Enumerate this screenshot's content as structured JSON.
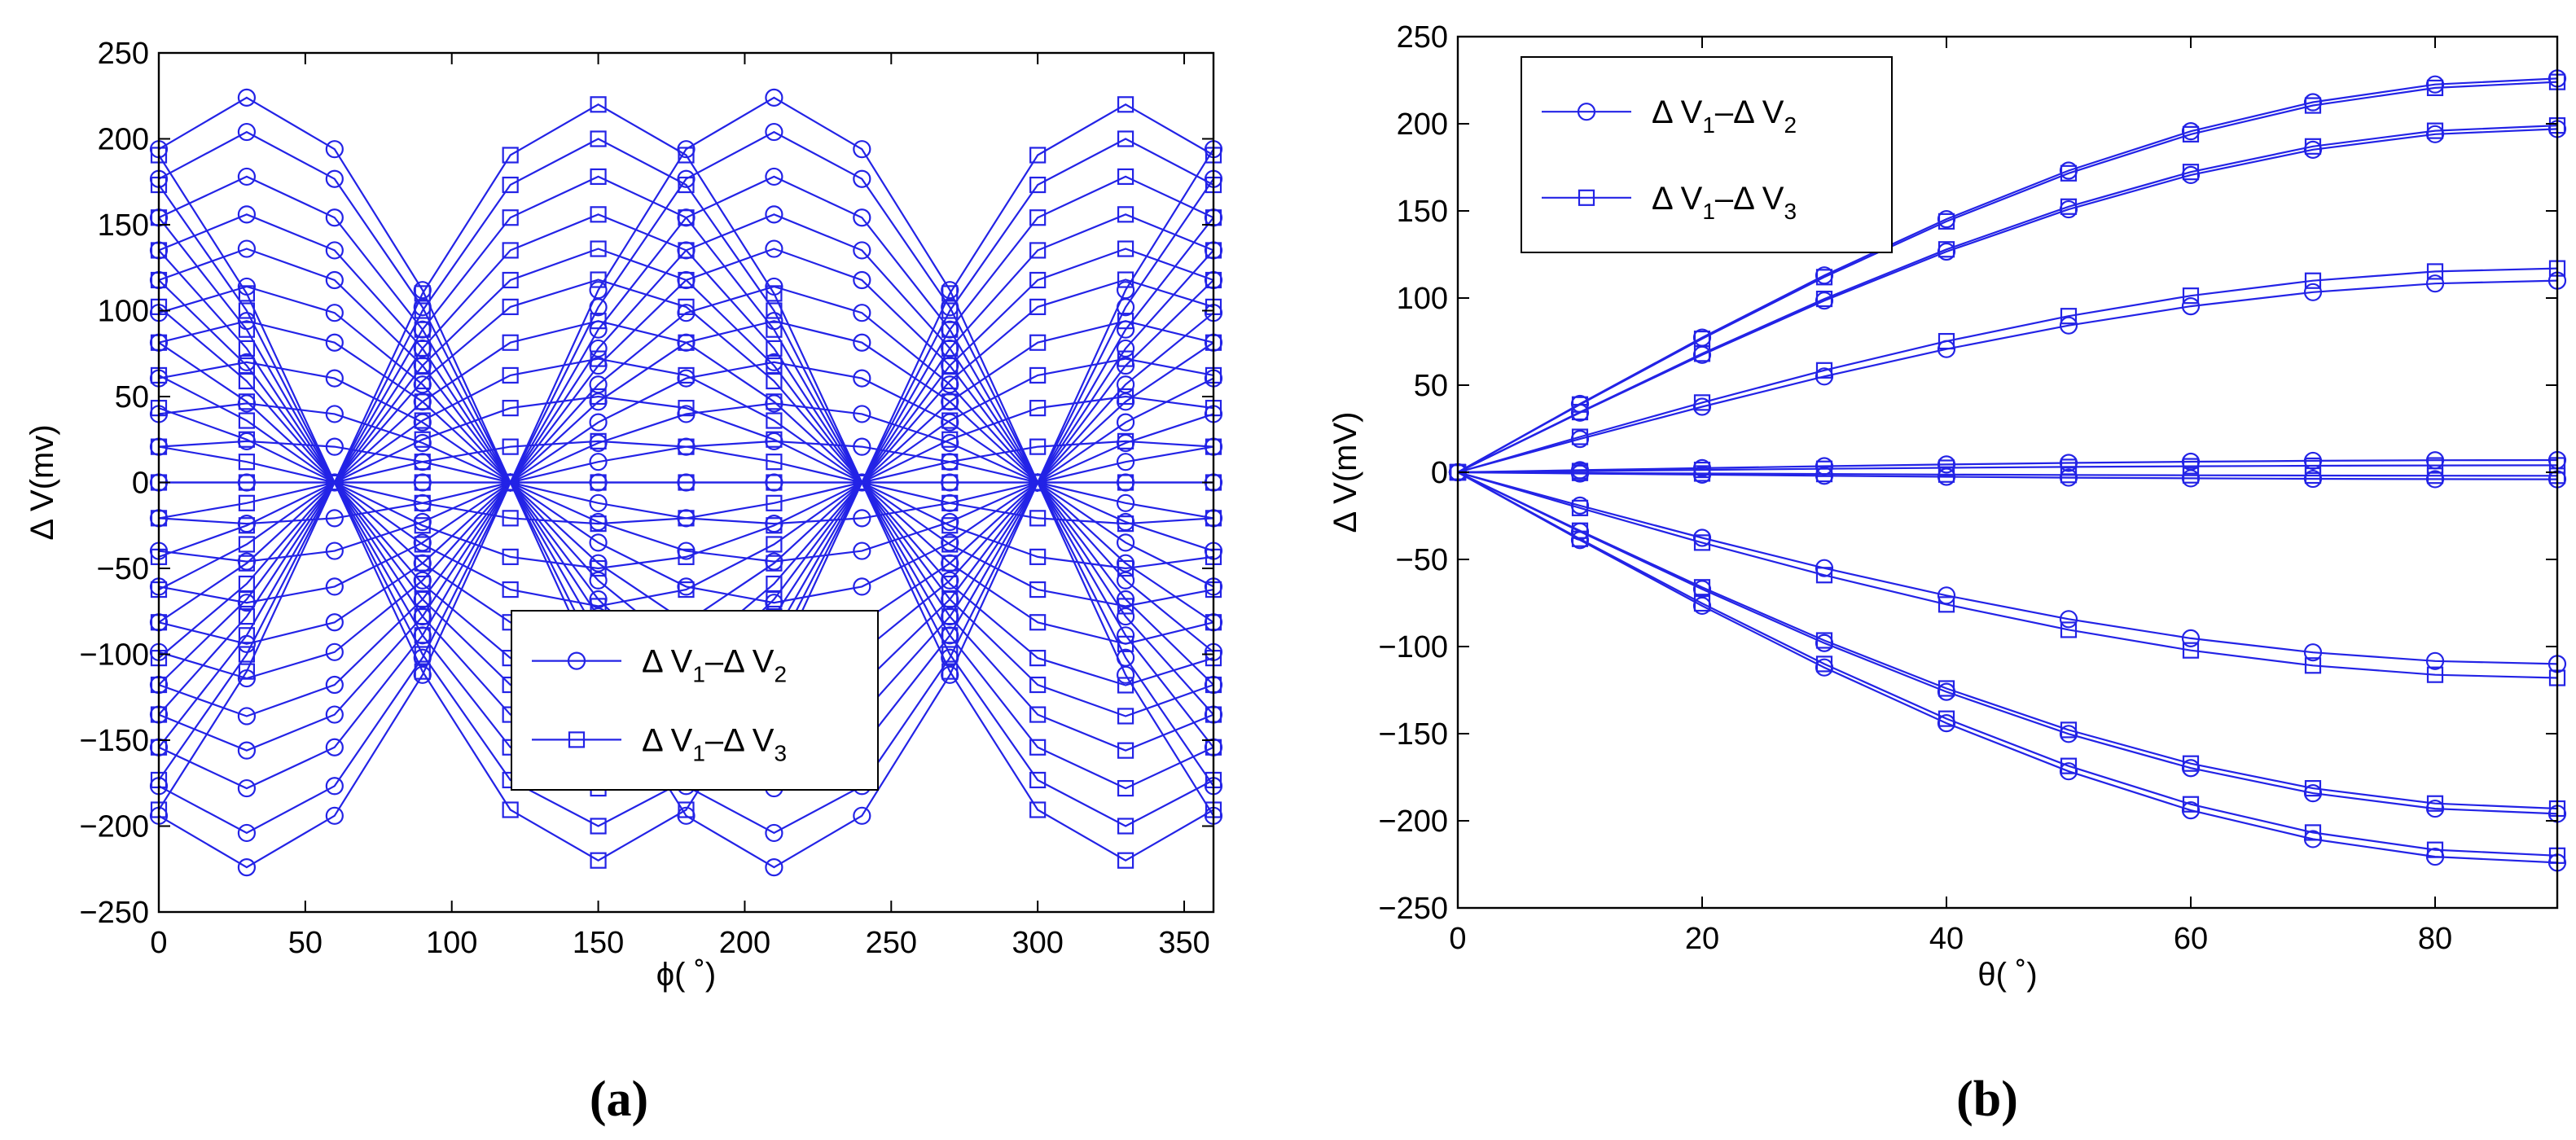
{
  "chart_data": [
    {
      "type": "line",
      "panel_label": "(a)",
      "xlabel": "ϕ( ˚)",
      "ylabel": "Δ V(mv)",
      "xlim": [
        0,
        360
      ],
      "ylim": [
        -250,
        250
      ],
      "xticks": [
        0,
        50,
        100,
        150,
        200,
        250,
        300,
        350
      ],
      "yticks": [
        -250,
        -200,
        -150,
        -100,
        -50,
        0,
        50,
        100,
        150,
        200,
        250
      ],
      "legend_position": "lower-right",
      "legend": [
        {
          "marker": "circle",
          "text": "Δ V",
          "sub1": "1",
          "dash": "–Δ V",
          "sub2": "2"
        },
        {
          "marker": "square",
          "text": "Δ V",
          "sub1": "1",
          "dash": "–Δ V",
          "sub2": "3"
        }
      ],
      "series_groups": [
        {
          "name": "ΔV1−ΔV2",
          "marker": "circle",
          "x": [
            0,
            30,
            60,
            90,
            120,
            150,
            180,
            210,
            240,
            270,
            300,
            330,
            360
          ],
          "phase_deg": 300,
          "amplitudes": [
            0,
            24,
            46,
            70,
            94,
            114,
            136,
            156,
            178,
            204,
            224
          ]
        },
        {
          "name": "ΔV1−ΔV3",
          "marker": "square",
          "x": [
            0,
            30,
            60,
            90,
            120,
            150,
            180,
            210,
            240,
            270,
            300,
            330,
            360
          ],
          "phase_deg": 240,
          "amplitudes": [
            0,
            24,
            50,
            72,
            94,
            118,
            136,
            156,
            178,
            200,
            220
          ]
        }
      ]
    },
    {
      "type": "line",
      "panel_label": "(b)",
      "xlabel": "θ( ˚)",
      "ylabel": "Δ V(mV)",
      "xlim": [
        0,
        90
      ],
      "ylim": [
        -250,
        250
      ],
      "xticks": [
        0,
        20,
        40,
        60,
        80
      ],
      "yticks": [
        -250,
        -200,
        -150,
        -100,
        -50,
        0,
        50,
        100,
        150,
        200,
        250
      ],
      "legend_position": "top-left",
      "legend": [
        {
          "marker": "circle",
          "text": "Δ V",
          "sub1": "1",
          "dash": "–Δ V",
          "sub2": "2"
        },
        {
          "marker": "square",
          "text": "Δ V",
          "sub1": "1",
          "dash": "–Δ V",
          "sub2": "3"
        }
      ],
      "x": [
        0,
        10,
        20,
        30,
        40,
        50,
        60,
        70,
        80,
        90
      ],
      "series": [
        {
          "name": "ΔV1−ΔV2",
          "marker": "circle",
          "end_value": 226
        },
        {
          "name": "ΔV1−ΔV2",
          "marker": "circle",
          "end_value": 197
        },
        {
          "name": "ΔV1−ΔV2",
          "marker": "circle",
          "end_value": 110
        },
        {
          "name": "ΔV1−ΔV2",
          "marker": "circle",
          "end_value": 7
        },
        {
          "name": "ΔV1−ΔV2",
          "marker": "circle",
          "end_value": -4
        },
        {
          "name": "ΔV1−ΔV2",
          "marker": "circle",
          "end_value": -110
        },
        {
          "name": "ΔV1−ΔV2",
          "marker": "circle",
          "end_value": -196
        },
        {
          "name": "ΔV1−ΔV2",
          "marker": "circle",
          "end_value": -224
        },
        {
          "name": "ΔV1−ΔV3",
          "marker": "square",
          "end_value": 224
        },
        {
          "name": "ΔV1−ΔV3",
          "marker": "square",
          "end_value": 199
        },
        {
          "name": "ΔV1−ΔV3",
          "marker": "square",
          "end_value": 117
        },
        {
          "name": "ΔV1−ΔV3",
          "marker": "square",
          "end_value": 4
        },
        {
          "name": "ΔV1−ΔV3",
          "marker": "square",
          "end_value": -2
        },
        {
          "name": "ΔV1−ΔV3",
          "marker": "square",
          "end_value": -118
        },
        {
          "name": "ΔV1−ΔV3",
          "marker": "square",
          "end_value": -193
        },
        {
          "name": "ΔV1−ΔV3",
          "marker": "square",
          "end_value": -220
        }
      ]
    }
  ],
  "style": {
    "line_color": "#2323e6",
    "axis_color": "#000000"
  }
}
